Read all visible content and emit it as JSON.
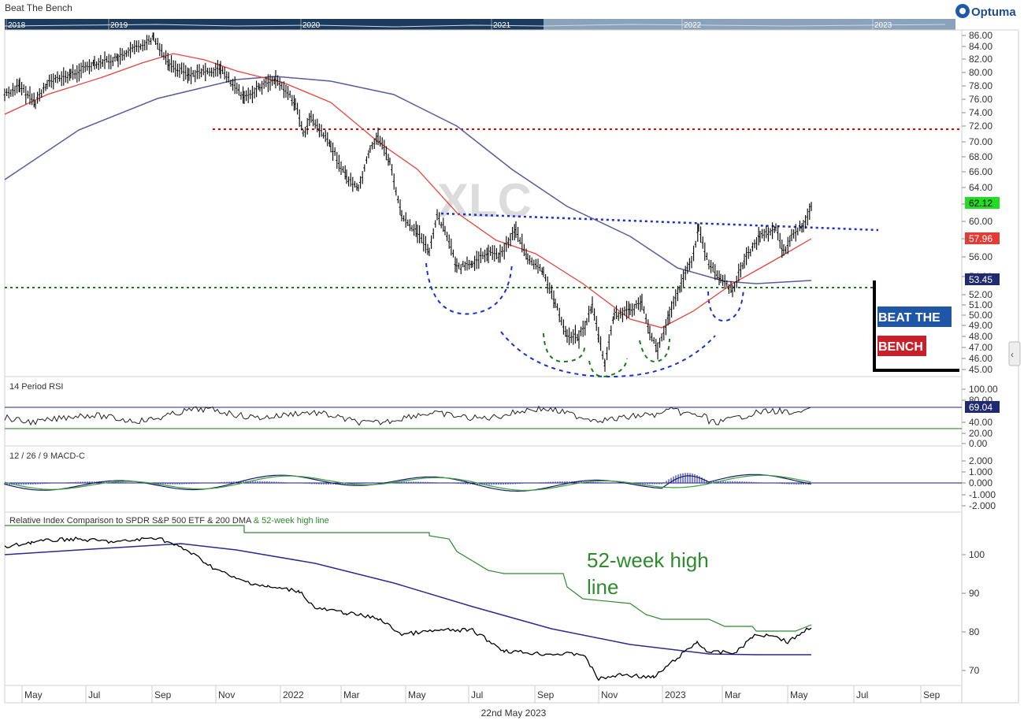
{
  "app": {
    "title": "Beat The Bench",
    "brand": "Optuma",
    "footer_date": "22nd May 2023"
  },
  "timeline": {
    "years": [
      "2018",
      "2019",
      "2020",
      "2021",
      "2022",
      "2023"
    ]
  },
  "watermark": "XLC",
  "logo": {
    "line1": "BEAT THE",
    "line2": "BENCH"
  },
  "colors": {
    "price": "#000000",
    "ma50": "#e8423c",
    "ma200": "#5a5a9e",
    "resistance": "#e00000",
    "neckline": "#1a2fcf",
    "support": "#1a7a1a",
    "rsi_band": "#1a7a1a",
    "macd_hist": "#2b35c8",
    "macd_line": "#1a1a6e",
    "macd_signal": "#3aa03a",
    "relative": "#000000",
    "relative_ma": "#2a2a90",
    "high52": "#2e8b2e",
    "last_price_bg": "#22dd22",
    "ma50_bg": "#e33b36",
    "ma200_bg": "#1f2a70",
    "rsi_bg": "#1f2a70"
  },
  "xaxis": {
    "labels": [
      "May",
      "Jul",
      "Sep",
      "Nov",
      "2022",
      "Mar",
      "May",
      "Jul",
      "Sep",
      "Nov",
      "2023",
      "Mar",
      "May",
      "Jul",
      "Sep"
    ]
  },
  "panels": {
    "price": {
      "ticks": [
        "86.00",
        "84.00",
        "82.00",
        "80.00",
        "78.00",
        "76.00",
        "74.00",
        "72.00",
        "70.00",
        "68.00",
        "66.00",
        "64.00",
        "62.00",
        "60.00",
        "58.00",
        "56.00",
        "54.00",
        "52.00",
        "51.00",
        "50.00",
        "49.00",
        "48.00",
        "47.00",
        "46.00",
        "45.00"
      ],
      "badges": {
        "last": "62.12",
        "ma50": "57.96",
        "ma200": "53.45"
      }
    },
    "rsi": {
      "title": "14 Period RSI",
      "ticks": [
        "100.00",
        "80.00",
        "69.04",
        "40.00",
        "20.00",
        "0.00"
      ],
      "badge": "69.04"
    },
    "macd": {
      "title": "12 / 26 / 9 MACD-C",
      "ticks": [
        "2.000",
        "1.000",
        "0.000",
        "-1.000",
        "-2.000"
      ]
    },
    "relative": {
      "title": "Relative Index Comparison to SPDR S&P 500 ETF & 200 DMA",
      "title_extra": "& 52-week high line",
      "ticks": [
        "100",
        "90",
        "80",
        "70"
      ],
      "annotation_line1": "52-week high",
      "annotation_line2": "line"
    }
  },
  "chart_data": {
    "type": "line",
    "title": "XLC",
    "x": [
      "2021-05-01",
      "2021-07-01",
      "2021-09-01",
      "2021-11-01",
      "2022-01-01",
      "2022-03-01",
      "2022-05-01",
      "2022-07-01",
      "2022-09-01",
      "2022-11-01",
      "2023-01-01",
      "2023-03-01",
      "2023-05-22"
    ],
    "series": [
      {
        "values": [
          77,
          82,
          85,
          78,
          78,
          68,
          57,
          56,
          48,
          48,
          55,
          55,
          62.12
        ]
      }
    ],
    "levels": {
      "resistance": 71.7,
      "neckline_start": 61.0,
      "neckline_end": 59.0,
      "support": 53.0
    },
    "ylim": [
      45,
      87
    ],
    "last_values": {
      "price": 62.12,
      "ma50": 57.96,
      "ma200": 53.45,
      "rsi": 69.04
    }
  }
}
